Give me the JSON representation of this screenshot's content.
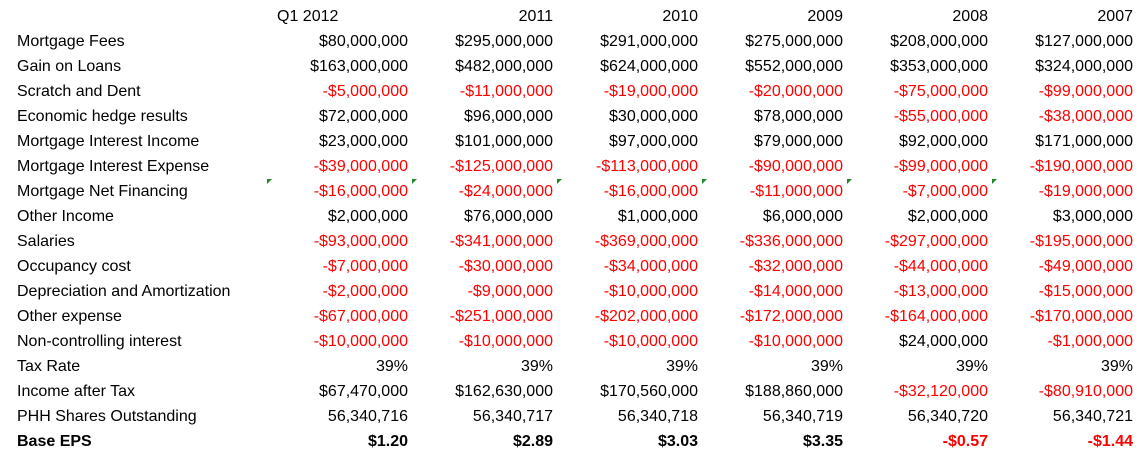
{
  "headers": {
    "label": "",
    "cols": [
      "Q1 2012",
      "2011",
      "2010",
      "2009",
      "2008",
      "2007"
    ]
  },
  "rows": [
    {
      "label": "Mortgage Fees",
      "values": [
        "$80,000,000",
        "$295,000,000",
        "$291,000,000",
        "$275,000,000",
        "$208,000,000",
        "$127,000,000"
      ]
    },
    {
      "label": "Gain on Loans",
      "values": [
        "$163,000,000",
        "$482,000,000",
        "$624,000,000",
        "$552,000,000",
        "$353,000,000",
        "$324,000,000"
      ]
    },
    {
      "label": "Scratch and Dent",
      "values": [
        "-$5,000,000",
        "-$11,000,000",
        "-$19,000,000",
        "-$20,000,000",
        "-$75,000,000",
        "-$99,000,000"
      ]
    },
    {
      "label": "Economic hedge results",
      "values": [
        "$72,000,000",
        "$96,000,000",
        "$30,000,000",
        "$78,000,000",
        "-$55,000,000",
        "-$38,000,000"
      ]
    },
    {
      "label": "Mortgage Interest Income",
      "values": [
        "$23,000,000",
        "$101,000,000",
        "$97,000,000",
        "$79,000,000",
        "$92,000,000",
        "$171,000,000"
      ]
    },
    {
      "label": "Mortgage Interest Expense",
      "values": [
        "-$39,000,000",
        "-$125,000,000",
        "-$113,000,000",
        "-$90,000,000",
        "-$99,000,000",
        "-$190,000,000"
      ]
    },
    {
      "label": "Mortgage Net Financing",
      "values": [
        "-$16,000,000",
        "-$24,000,000",
        "-$16,000,000",
        "-$11,000,000",
        "-$7,000,000",
        "-$19,000,000"
      ]
    },
    {
      "label": "Other Income",
      "values": [
        "$2,000,000",
        "$76,000,000",
        "$1,000,000",
        "$6,000,000",
        "$2,000,000",
        "$3,000,000"
      ]
    },
    {
      "label": "Salaries",
      "values": [
        "-$93,000,000",
        "-$341,000,000",
        "-$369,000,000",
        "-$336,000,000",
        "-$297,000,000",
        "-$195,000,000"
      ]
    },
    {
      "label": "Occupancy cost",
      "values": [
        "-$7,000,000",
        "-$30,000,000",
        "-$34,000,000",
        "-$32,000,000",
        "-$44,000,000",
        "-$49,000,000"
      ]
    },
    {
      "label": "Depreciation and Amortization",
      "values": [
        "-$2,000,000",
        "-$9,000,000",
        "-$10,000,000",
        "-$14,000,000",
        "-$13,000,000",
        "-$15,000,000"
      ]
    },
    {
      "label": "Other expense",
      "values": [
        "-$67,000,000",
        "-$251,000,000",
        "-$202,000,000",
        "-$172,000,000",
        "-$164,000,000",
        "-$170,000,000"
      ]
    },
    {
      "label": "Non-controlling interest",
      "values": [
        "-$10,000,000",
        "-$10,000,000",
        "-$10,000,000",
        "-$10,000,000",
        "$24,000,000",
        "-$1,000,000"
      ]
    },
    {
      "label": "Tax Rate",
      "values": [
        "39%",
        "39%",
        "39%",
        "39%",
        "39%",
        "39%"
      ]
    },
    {
      "label": "Income after Tax",
      "values": [
        "$67,470,000",
        "$162,630,000",
        "$170,560,000",
        "$188,860,000",
        "-$32,120,000",
        "-$80,910,000"
      ]
    },
    {
      "label": "PHH Shares Outstanding",
      "values": [
        "56,340,716",
        "56,340,717",
        "56,340,718",
        "56,340,719",
        "56,340,720",
        "56,340,721"
      ]
    },
    {
      "label": "Base EPS",
      "values": [
        "$1.20",
        "$2.89",
        "$3.03",
        "$3.35",
        "-$0.57",
        "-$1.44"
      ]
    }
  ],
  "colors": {
    "negative": "#ff0000",
    "positive": "#000000",
    "error_indicator": "#1a8a2a"
  }
}
